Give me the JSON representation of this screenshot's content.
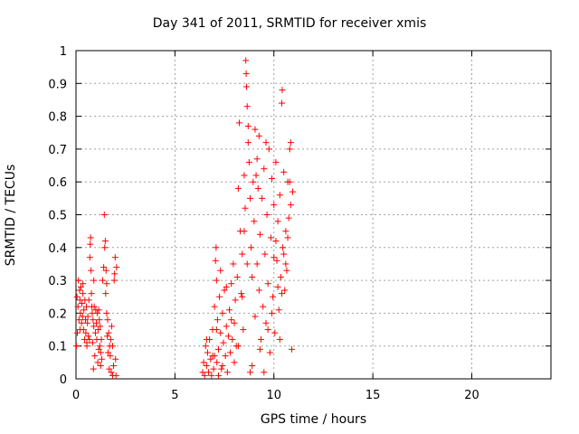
{
  "chart_data": {
    "type": "scatter",
    "title": "Day 341 of 2011, SRMTID for receiver xmis",
    "xlabel": "GPS time / hours",
    "ylabel": "SRMTID / TECUs",
    "xlim": [
      0,
      24
    ],
    "ylim": [
      0,
      1
    ],
    "x_ticks": [
      "0",
      "5",
      "10",
      "15",
      "20"
    ],
    "x_tick_values": [
      0,
      5,
      10,
      15,
      20
    ],
    "y_ticks": [
      "0",
      "0.1",
      "0.2",
      "0.3",
      "0.4",
      "0.5",
      "0.6",
      "0.7",
      "0.8",
      "0.9",
      "1"
    ],
    "y_tick_values": [
      0,
      0.1,
      0.2,
      0.3,
      0.4,
      0.5,
      0.6,
      0.7,
      0.8,
      0.9,
      1.0
    ],
    "grid": true,
    "marker": "+",
    "color": "#ff0000",
    "series": [
      {
        "points": [
          [
            0.02,
            0.1
          ],
          [
            0.05,
            0.25
          ],
          [
            0.07,
            0.14
          ],
          [
            0.1,
            0.22
          ],
          [
            0.12,
            0.3
          ],
          [
            0.15,
            0.18
          ],
          [
            0.18,
            0.27
          ],
          [
            0.2,
            0.24
          ],
          [
            0.22,
            0.2
          ],
          [
            0.25,
            0.28
          ],
          [
            0.28,
            0.17
          ],
          [
            0.3,
            0.23
          ],
          [
            0.33,
            0.19
          ],
          [
            0.35,
            0.26
          ],
          [
            0.38,
            0.15
          ],
          [
            0.4,
            0.21
          ],
          [
            0.43,
            0.12
          ],
          [
            0.45,
            0.24
          ],
          [
            0.48,
            0.18
          ],
          [
            0.5,
            0.14
          ],
          [
            0.53,
            0.22
          ],
          [
            0.55,
            0.11
          ],
          [
            0.58,
            0.17
          ],
          [
            0.6,
            0.19
          ],
          [
            0.63,
            0.13
          ],
          [
            0.65,
            0.24
          ],
          [
            0.68,
            0.12
          ],
          [
            0.7,
            0.37
          ],
          [
            0.72,
            0.41
          ],
          [
            0.74,
            0.43
          ],
          [
            0.76,
            0.33
          ],
          [
            0.78,
            0.26
          ],
          [
            0.8,
            0.22
          ],
          [
            0.82,
            0.2
          ],
          [
            0.84,
            0.11
          ],
          [
            0.86,
            0.18
          ],
          [
            0.88,
            0.03
          ],
          [
            0.9,
            0.16
          ],
          [
            0.92,
            0.22
          ],
          [
            0.95,
            0.07
          ],
          [
            0.98,
            0.14
          ],
          [
            1.0,
            0.21
          ],
          [
            1.03,
            0.17
          ],
          [
            1.05,
            0.12
          ],
          [
            1.08,
            0.2
          ],
          [
            1.1,
            0.05
          ],
          [
            1.12,
            0.15
          ],
          [
            1.15,
            0.09
          ],
          [
            1.18,
            0.18
          ],
          [
            1.2,
            0.1
          ],
          [
            1.22,
            0.16
          ],
          [
            1.25,
            0.08
          ],
          [
            1.28,
            0.12
          ],
          [
            1.3,
            0.06
          ],
          [
            1.35,
            0.3
          ],
          [
            1.4,
            0.34
          ],
          [
            1.43,
            0.5
          ],
          [
            1.45,
            0.4
          ],
          [
            1.48,
            0.42
          ],
          [
            1.5,
            0.26
          ],
          [
            1.52,
            0.33
          ],
          [
            1.55,
            0.2
          ],
          [
            1.58,
            0.13
          ],
          [
            1.6,
            0.18
          ],
          [
            1.62,
            0.08
          ],
          [
            1.65,
            0.14
          ],
          [
            1.68,
            0.03
          ],
          [
            1.7,
            0.1
          ],
          [
            1.73,
            0.07
          ],
          [
            1.75,
            0.12
          ],
          [
            1.78,
            0.02
          ],
          [
            1.8,
            0.16
          ],
          [
            1.85,
            0.01
          ],
          [
            1.9,
            0.04
          ],
          [
            1.93,
            0.3
          ],
          [
            1.95,
            0.32
          ],
          [
            1.98,
            0.37
          ],
          [
            2.0,
            0.06
          ],
          [
            2.02,
            0.01
          ],
          [
            2.05,
            0.34
          ],
          [
            6.4,
            0.02
          ],
          [
            6.45,
            0.05
          ],
          [
            6.5,
            0.01
          ],
          [
            6.55,
            0.1
          ],
          [
            6.6,
            0.04
          ],
          [
            6.65,
            0.08
          ],
          [
            6.7,
            0.02
          ],
          [
            6.75,
            0.12
          ],
          [
            6.8,
            0.06
          ],
          [
            6.85,
            0.01
          ],
          [
            6.9,
            0.15
          ],
          [
            6.95,
            0.03
          ],
          [
            7.0,
            0.22
          ],
          [
            7.05,
            0.36
          ],
          [
            7.08,
            0.4
          ],
          [
            7.1,
            0.3
          ],
          [
            7.12,
            0.05
          ],
          [
            7.15,
            0.18
          ],
          [
            7.2,
            0.09
          ],
          [
            7.25,
            0.25
          ],
          [
            7.3,
            0.14
          ],
          [
            7.35,
            0.03
          ],
          [
            7.4,
            0.2
          ],
          [
            7.45,
            0.11
          ],
          [
            7.5,
            0.27
          ],
          [
            7.55,
            0.07
          ],
          [
            7.6,
            0.16
          ],
          [
            7.65,
            0.02
          ],
          [
            7.7,
            0.13
          ],
          [
            7.75,
            0.21
          ],
          [
            7.8,
            0.08
          ],
          [
            7.85,
            0.29
          ],
          [
            7.9,
            0.12
          ],
          [
            7.95,
            0.35
          ],
          [
            8.0,
            0.17
          ],
          [
            8.05,
            0.24
          ],
          [
            8.1,
            0.1
          ],
          [
            8.15,
            0.31
          ],
          [
            8.2,
            0.58
          ],
          [
            8.25,
            0.78
          ],
          [
            8.3,
            0.45
          ],
          [
            8.35,
            0.26
          ],
          [
            8.4,
            0.38
          ],
          [
            8.45,
            0.15
          ],
          [
            8.5,
            0.62
          ],
          [
            8.55,
            0.52
          ],
          [
            8.58,
            0.97
          ],
          [
            8.6,
            0.93
          ],
          [
            8.62,
            0.89
          ],
          [
            8.65,
            0.83
          ],
          [
            8.7,
            0.72
          ],
          [
            8.75,
            0.66
          ],
          [
            8.8,
            0.55
          ],
          [
            8.85,
            0.4
          ],
          [
            8.9,
            0.31
          ],
          [
            8.95,
            0.6
          ],
          [
            9.0,
            0.48
          ],
          [
            9.05,
            0.19
          ],
          [
            9.1,
            0.62
          ],
          [
            9.15,
            0.35
          ],
          [
            9.2,
            0.58
          ],
          [
            9.25,
            0.27
          ],
          [
            9.3,
            0.44
          ],
          [
            9.35,
            0.12
          ],
          [
            9.4,
            0.55
          ],
          [
            9.45,
            0.22
          ],
          [
            9.5,
            0.64
          ],
          [
            9.55,
            0.38
          ],
          [
            9.6,
            0.17
          ],
          [
            9.65,
            0.5
          ],
          [
            9.7,
            0.29
          ],
          [
            9.75,
            0.7
          ],
          [
            9.8,
            0.08
          ],
          [
            9.85,
            0.43
          ],
          [
            9.9,
            0.61
          ],
          [
            9.95,
            0.25
          ],
          [
            10.0,
            0.53
          ],
          [
            10.05,
            0.14
          ],
          [
            10.1,
            0.66
          ],
          [
            10.15,
            0.36
          ],
          [
            10.2,
            0.48
          ],
          [
            10.25,
            0.21
          ],
          [
            10.3,
            0.56
          ],
          [
            10.35,
            0.31
          ],
          [
            10.4,
            0.84
          ],
          [
            10.42,
            0.88
          ],
          [
            10.45,
            0.4
          ],
          [
            10.5,
            0.63
          ],
          [
            10.55,
            0.27
          ],
          [
            10.6,
            0.45
          ],
          [
            10.65,
            0.33
          ],
          [
            10.7,
            0.6
          ],
          [
            10.75,
            0.49
          ],
          [
            10.8,
            0.7
          ],
          [
            10.85,
            0.72
          ],
          [
            10.9,
            0.09
          ],
          [
            10.95,
            0.57
          ],
          [
            9.05,
            0.76
          ],
          [
            9.25,
            0.74
          ],
          [
            8.7,
            0.77
          ],
          [
            8.65,
            0.35
          ],
          [
            8.9,
            0.04
          ],
          [
            9.5,
            0.02
          ],
          [
            9.3,
            0.09
          ],
          [
            10.0,
            0.37
          ],
          [
            10.1,
            0.42
          ],
          [
            10.6,
            0.35
          ],
          [
            10.5,
            0.38
          ],
          [
            7.3,
            0.33
          ],
          [
            7.6,
            0.28
          ],
          [
            7.85,
            0.18
          ],
          [
            8.0,
            0.05
          ],
          [
            8.2,
            0.1
          ],
          [
            8.4,
            0.25
          ],
          [
            9.7,
            0.15
          ],
          [
            9.9,
            0.2
          ],
          [
            10.2,
            0.28
          ],
          [
            10.3,
            0.12
          ],
          [
            0.35,
            0.29
          ],
          [
            0.55,
            0.1
          ],
          [
            1.15,
            0.21
          ],
          [
            1.25,
            0.04
          ],
          [
            6.6,
            0.12
          ],
          [
            7.0,
            0.07
          ],
          [
            7.2,
            0.01
          ],
          [
            7.4,
            0.04
          ],
          [
            8.8,
            0.02
          ],
          [
            9.6,
            0.72
          ],
          [
            10.7,
            0.43
          ],
          [
            10.4,
            0.26
          ],
          [
            9.15,
            0.67
          ],
          [
            8.5,
            0.45
          ],
          [
            7.1,
            0.15
          ],
          [
            6.9,
            0.07
          ],
          [
            0.2,
            0.15
          ],
          [
            0.9,
            0.3
          ],
          [
            1.55,
            0.29
          ],
          [
            1.85,
            0.1
          ],
          [
            10.85,
            0.53
          ],
          [
            10.8,
            0.6
          ]
        ]
      }
    ]
  }
}
